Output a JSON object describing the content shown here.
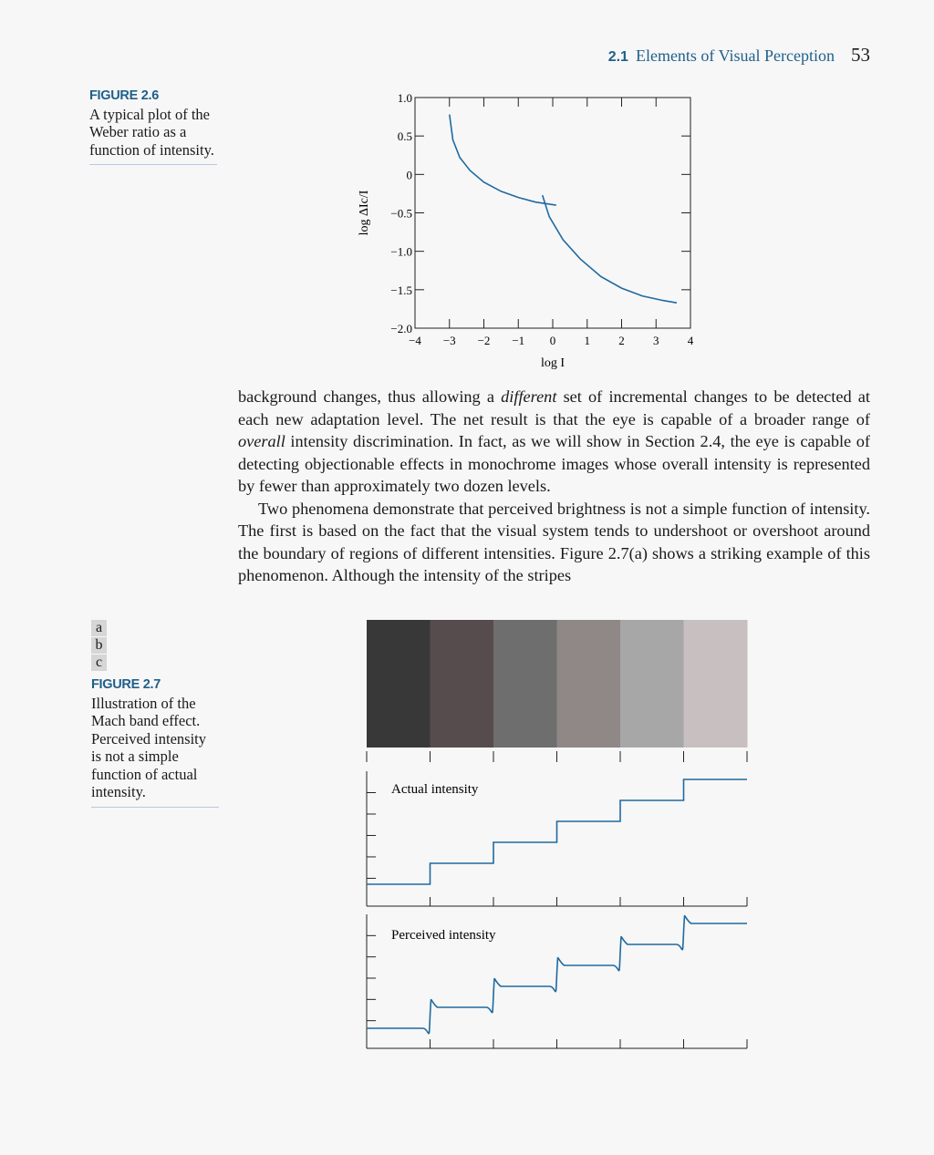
{
  "header": {
    "section_number": "2.1",
    "section_title": "Elements of Visual Perception",
    "page_number": "53"
  },
  "figure_2_6": {
    "label": "FIGURE 2.6",
    "caption": "A typical plot of the Weber ratio as a function of intensity."
  },
  "figure_2_7": {
    "panels": [
      "a",
      "b",
      "c"
    ],
    "label": "FIGURE 2.7",
    "caption": "Illustration of the Mach band effect. Perceived intensity is not a simple function of actual intensity.",
    "stripe_colors": [
      "#383838",
      "#574c4d",
      "#6e6e6e",
      "#908787",
      "#a7a7a7",
      "#c8bfc0"
    ],
    "actual_label": "Actual intensity",
    "perceived_label": "Perceived intensity"
  },
  "chart_data": {
    "type": "line",
    "xlabel": "log I",
    "ylabel": "log ΔIc/I",
    "xlim": [
      -4,
      4
    ],
    "ylim": [
      -2.0,
      1.0
    ],
    "x_ticks": [
      "−4",
      "−3",
      "−2",
      "−1",
      "0",
      "1",
      "2",
      "3",
      "4"
    ],
    "y_ticks": [
      "1.0",
      "0.5",
      "0",
      "−0.5",
      "−1.0",
      "−1.5",
      "−2.0"
    ],
    "series": [
      {
        "x": [
          -3.0,
          -2.9,
          -2.7,
          -2.4,
          -2.0,
          -1.5,
          -1.0,
          -0.5,
          0.1
        ],
        "y": [
          0.78,
          0.45,
          0.22,
          0.05,
          -0.1,
          -0.22,
          -0.3,
          -0.36,
          -0.4
        ]
      },
      {
        "x": [
          -0.3,
          -0.1,
          0.3,
          0.8,
          1.4,
          2.0,
          2.6,
          3.2,
          3.6
        ],
        "y": [
          -0.27,
          -0.55,
          -0.85,
          -1.1,
          -1.33,
          -1.48,
          -1.58,
          -1.64,
          -1.67
        ]
      }
    ]
  },
  "body": {
    "p1_a": "background changes, thus allowing a ",
    "p1_em1": "different",
    "p1_b": " set of incremental changes to be detected at each new adaptation level. The net result is that the eye is capable of a broader range of ",
    "p1_em2": "overall",
    "p1_c": " intensity discrimination. In fact, as we will show in Section 2.4, the eye is capable of detecting objectionable effects in monochrome images whose overall intensity is represented by fewer than approximately two dozen levels.",
    "p2": "Two phenomena demonstrate that perceived brightness is not a simple function of intensity. The first is based on the fact that the visual system tends to undershoot or overshoot around the boundary of regions of different intensities. Figure 2.7(a) shows a striking example of this phenomenon. Although the intensity of the stripes"
  }
}
